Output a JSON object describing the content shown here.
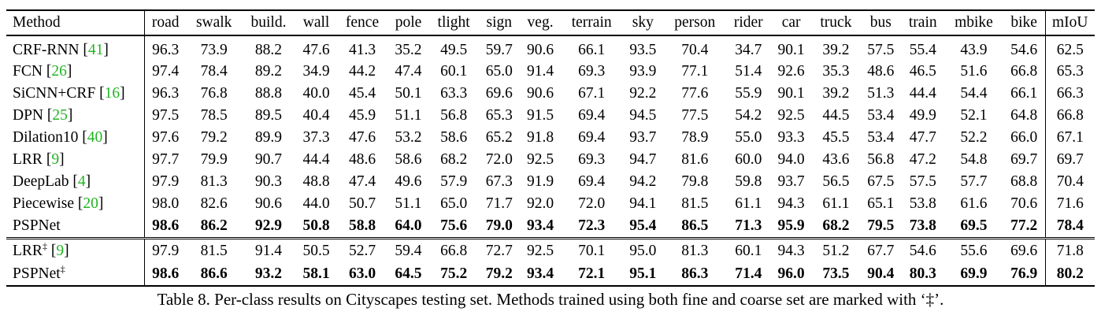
{
  "columns": [
    "Method",
    "road",
    "swalk",
    "build.",
    "wall",
    "fence",
    "pole",
    "tlight",
    "sign",
    "veg.",
    "terrain",
    "sky",
    "person",
    "rider",
    "car",
    "truck",
    "bus",
    "train",
    "mbike",
    "bike",
    "mIoU"
  ],
  "group1": [
    {
      "method": "CRF-RNN",
      "cite": "41",
      "values": [
        "96.3",
        "73.9",
        "88.2",
        "47.6",
        "41.3",
        "35.2",
        "49.5",
        "59.7",
        "90.6",
        "66.1",
        "93.5",
        "70.4",
        "34.7",
        "90.1",
        "39.2",
        "57.5",
        "55.4",
        "43.9",
        "54.6",
        "62.5"
      ]
    },
    {
      "method": "FCN",
      "cite": "26",
      "values": [
        "97.4",
        "78.4",
        "89.2",
        "34.9",
        "44.2",
        "47.4",
        "60.1",
        "65.0",
        "91.4",
        "69.3",
        "93.9",
        "77.1",
        "51.4",
        "92.6",
        "35.3",
        "48.6",
        "46.5",
        "51.6",
        "66.8",
        "65.3"
      ]
    },
    {
      "method": "SiCNN+CRF",
      "cite": "16",
      "values": [
        "96.3",
        "76.8",
        "88.8",
        "40.0",
        "45.4",
        "50.1",
        "63.3",
        "69.6",
        "90.6",
        "67.1",
        "92.2",
        "77.6",
        "55.9",
        "90.1",
        "39.2",
        "51.3",
        "44.4",
        "54.4",
        "66.1",
        "66.3"
      ]
    },
    {
      "method": "DPN",
      "cite": "25",
      "values": [
        "97.5",
        "78.5",
        "89.5",
        "40.4",
        "45.9",
        "51.1",
        "56.8",
        "65.3",
        "91.5",
        "69.4",
        "94.5",
        "77.5",
        "54.2",
        "92.5",
        "44.5",
        "53.4",
        "49.9",
        "52.1",
        "64.8",
        "66.8"
      ]
    },
    {
      "method": "Dilation10",
      "cite": "40",
      "values": [
        "97.6",
        "79.2",
        "89.9",
        "37.3",
        "47.6",
        "53.2",
        "58.6",
        "65.2",
        "91.8",
        "69.4",
        "93.7",
        "78.9",
        "55.0",
        "93.3",
        "45.5",
        "53.4",
        "47.7",
        "52.2",
        "66.0",
        "67.1"
      ]
    },
    {
      "method": "LRR",
      "cite": "9",
      "values": [
        "97.7",
        "79.9",
        "90.7",
        "44.4",
        "48.6",
        "58.6",
        "68.2",
        "72.0",
        "92.5",
        "69.3",
        "94.7",
        "81.6",
        "60.0",
        "94.0",
        "43.6",
        "56.8",
        "47.2",
        "54.8",
        "69.7",
        "69.7"
      ]
    },
    {
      "method": "DeepLab",
      "cite": "4",
      "values": [
        "97.9",
        "81.3",
        "90.3",
        "48.8",
        "47.4",
        "49.6",
        "57.9",
        "67.3",
        "91.9",
        "69.4",
        "94.2",
        "79.8",
        "59.8",
        "93.7",
        "56.5",
        "67.5",
        "57.5",
        "57.7",
        "68.8",
        "70.4"
      ]
    },
    {
      "method": "Piecewise",
      "cite": "20",
      "values": [
        "98.0",
        "82.6",
        "90.6",
        "44.0",
        "50.7",
        "51.1",
        "65.0",
        "71.7",
        "92.0",
        "72.0",
        "94.1",
        "81.5",
        "61.1",
        "94.3",
        "61.1",
        "65.1",
        "53.8",
        "61.6",
        "70.6",
        "71.6"
      ]
    },
    {
      "method": "PSPNet",
      "cite": "",
      "bold": true,
      "values": [
        "98.6",
        "86.2",
        "92.9",
        "50.8",
        "58.8",
        "64.0",
        "75.6",
        "79.0",
        "93.4",
        "72.3",
        "95.4",
        "86.5",
        "71.3",
        "95.9",
        "68.2",
        "79.5",
        "73.8",
        "69.5",
        "77.2",
        "78.4"
      ]
    }
  ],
  "group2": [
    {
      "method": "LRR",
      "mark": "‡",
      "cite": "9",
      "values": [
        "97.9",
        "81.5",
        "91.4",
        "50.5",
        "52.7",
        "59.4",
        "66.8",
        "72.7",
        "92.5",
        "70.1",
        "95.0",
        "81.3",
        "60.1",
        "94.3",
        "51.2",
        "67.7",
        "54.6",
        "55.6",
        "69.6",
        "71.8"
      ]
    },
    {
      "method": "PSPNet",
      "mark": "‡",
      "cite": "",
      "bold": true,
      "values": [
        "98.6",
        "86.6",
        "93.2",
        "58.1",
        "63.0",
        "64.5",
        "75.2",
        "79.2",
        "93.4",
        "72.1",
        "95.1",
        "86.3",
        "71.4",
        "96.0",
        "73.5",
        "90.4",
        "80.3",
        "69.9",
        "76.9",
        "80.2"
      ]
    }
  ],
  "caption": "Table 8. Per-class results on Cityscapes testing set. Methods trained using both fine and coarse set are marked with ‘‡’."
}
